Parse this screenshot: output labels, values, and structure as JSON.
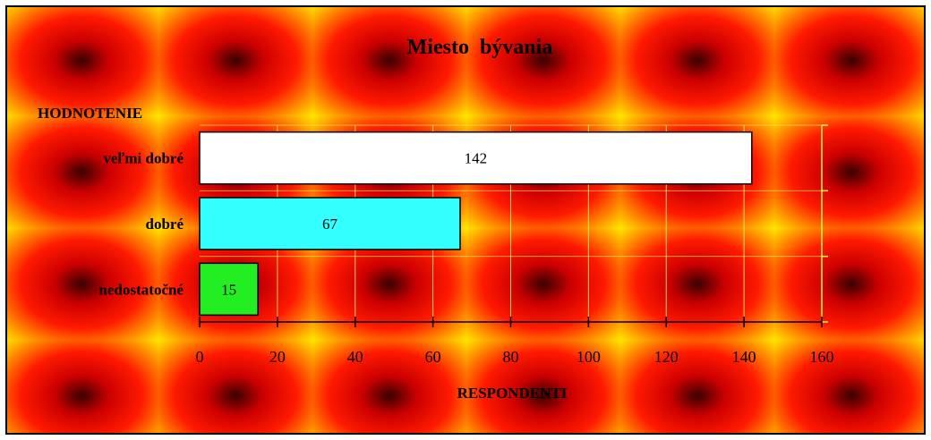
{
  "chart_data": {
    "type": "bar",
    "orientation": "horizontal",
    "title": "Miesto  bývania",
    "ylabel": "HODNOTENIE",
    "xlabel": "RESPONDENTI",
    "categories": [
      "veľmi dobré",
      "dobré",
      "nedostatočné"
    ],
    "values": [
      142,
      67,
      15
    ],
    "data_labels": [
      "142",
      "67",
      "15"
    ],
    "bar_colors": [
      "#ffffff",
      "#33ffff",
      "#22ee22"
    ],
    "xlim": [
      0,
      160
    ],
    "x_ticks": [
      0,
      20,
      40,
      60,
      80,
      100,
      120,
      140,
      160
    ],
    "x_tick_labels": [
      "0",
      "20",
      "40",
      "60",
      "80",
      "100",
      "120",
      "140",
      "160"
    ],
    "grid": true,
    "legend": "none",
    "colors": {
      "background_center": "#3a0000",
      "background_mid": "#ff1a00",
      "background_edge": "#ffee00",
      "grid": "#ffff66",
      "axis": "#000000",
      "right_axis": "#ffff33"
    }
  }
}
